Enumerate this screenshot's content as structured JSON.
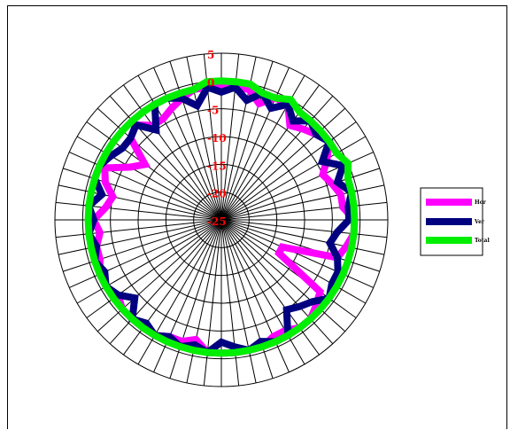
{
  "chart_data": {
    "type": "radar",
    "title": "",
    "n_axes": 60,
    "r_range": [
      -25,
      5
    ],
    "r_ticks": [
      5,
      0,
      -5,
      -10,
      -15,
      -20,
      -25
    ],
    "r_tick_labels": [
      "5",
      "0",
      "-5",
      "-10",
      "-15",
      "-20",
      "-25"
    ],
    "grid": true,
    "legend_position": "right",
    "series": [
      {
        "name": "Hor",
        "color": "#ff00ff",
        "values": [
          -1,
          -1,
          -1,
          -3,
          -1,
          -1,
          -4,
          -3,
          -2,
          -1,
          -3,
          -5,
          -4,
          -3,
          -3,
          -1,
          -1,
          -2,
          -3,
          -13,
          -13,
          -3,
          -2,
          -1,
          -1,
          -2,
          -2,
          -1,
          -1,
          -1,
          -1,
          -1,
          -3,
          -2,
          -2,
          -1,
          -1,
          -1,
          -1,
          -2,
          -1,
          -1,
          -2,
          -2,
          -3,
          -2,
          -4,
          -5,
          -3,
          -2,
          -6,
          -8,
          -3,
          -2,
          -4,
          -4,
          -3,
          -2,
          -1,
          -1
        ]
      },
      {
        "name": "Ver",
        "color": "#000080",
        "values": [
          -2,
          -1,
          -3,
          -1,
          -3,
          -1,
          -3,
          -1,
          -2,
          -1,
          -4,
          -1,
          -3,
          -1,
          -2,
          -2,
          -4,
          -5,
          -3,
          -2,
          -2,
          -1,
          -3,
          -4,
          -5,
          -1,
          -1,
          -2,
          -1,
          -2,
          -3,
          -1,
          -2,
          -1,
          -2,
          -1,
          -2,
          -1,
          -4,
          -2,
          -1,
          -2,
          -1,
          -2,
          -1,
          -2,
          -1,
          -3,
          -1,
          -1,
          -2,
          -3,
          -3,
          -2,
          -5,
          -1,
          -1,
          -2,
          -4,
          -1
        ]
      },
      {
        "name": "Total",
        "color": "#00ee00",
        "values": [
          0,
          0,
          0,
          -1,
          -1,
          0,
          -1,
          -1,
          -1,
          -1,
          -1,
          0,
          -1,
          -1,
          -1,
          -1,
          -1,
          -1,
          -1,
          -1,
          -1,
          -1,
          -1,
          -1,
          -1,
          -1,
          -1,
          -1,
          -1,
          -1,
          -1,
          -1,
          -1,
          -1,
          -1,
          -1,
          -1,
          -1,
          -1,
          -1,
          -1,
          -1,
          -1,
          -1,
          -1,
          -1,
          -1,
          -1,
          -1,
          -1,
          -1,
          -1,
          -1,
          -1,
          -1,
          -1,
          -1,
          -1,
          -1,
          0
        ]
      }
    ]
  }
}
